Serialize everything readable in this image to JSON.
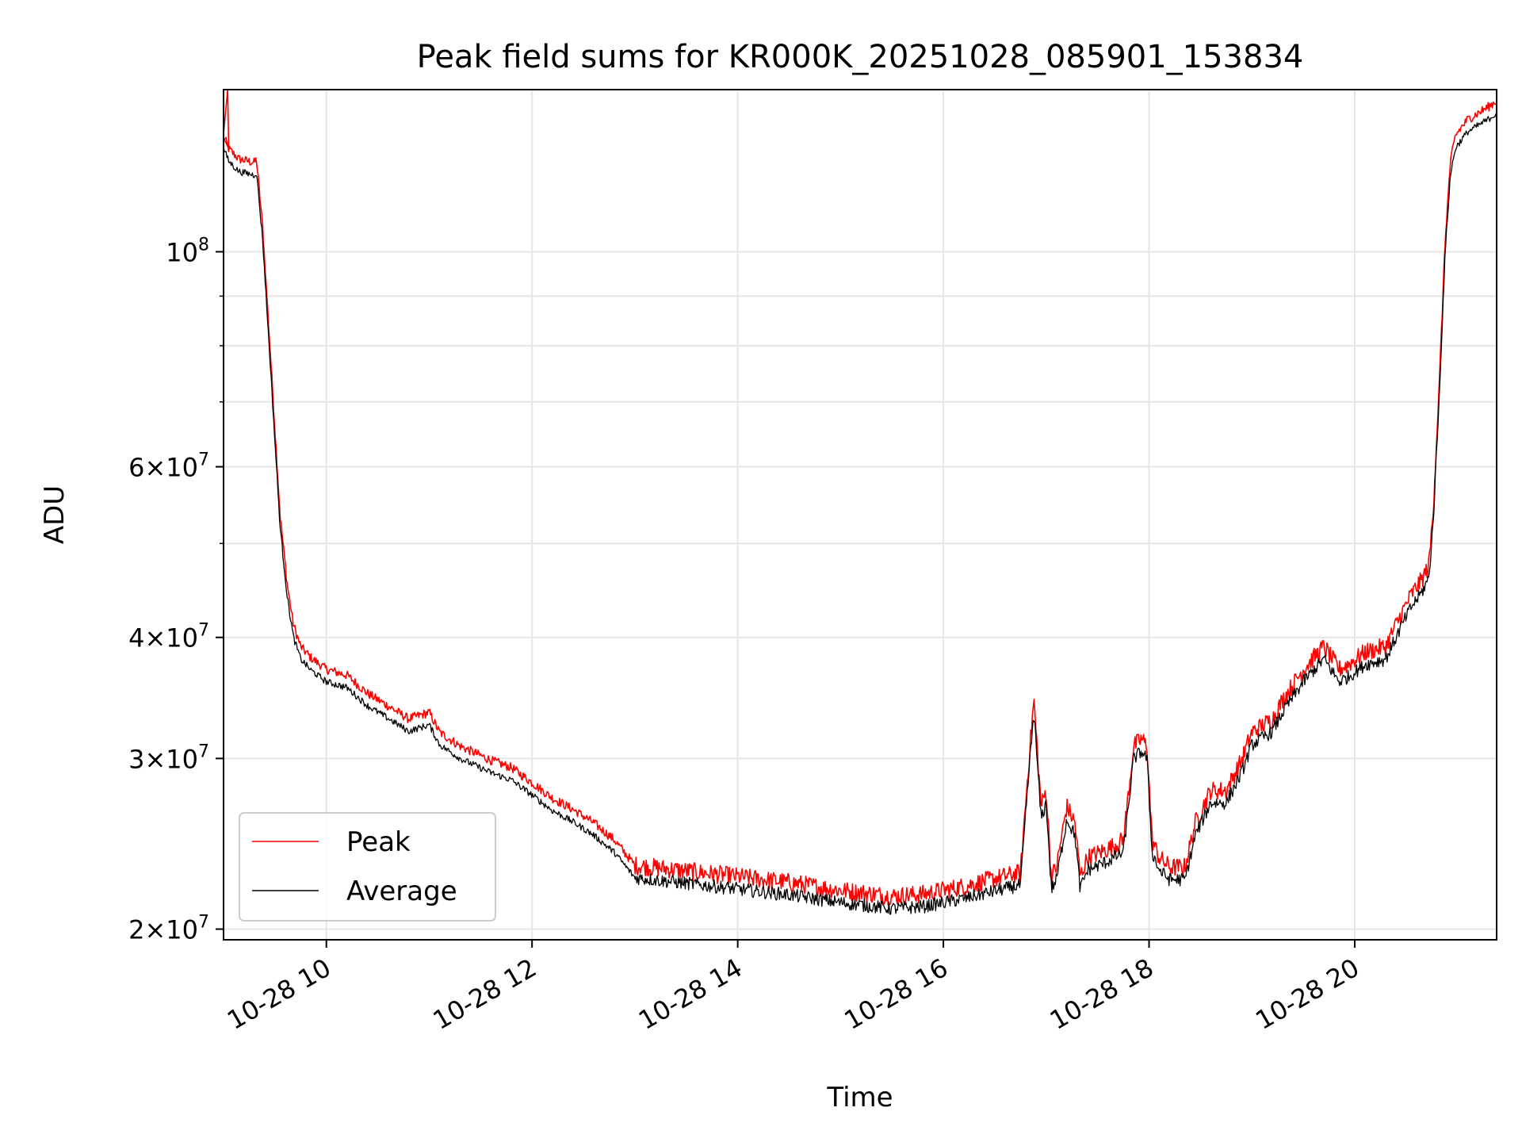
{
  "chart_data": {
    "type": "line",
    "title": "Peak field sums for KR000K_20251028_085901_153834",
    "xlabel": "Time",
    "ylabel": "ADU",
    "yscale": "log",
    "xlim": [
      9.0,
      21.38
    ],
    "ylim": [
      19500000,
      147000000
    ],
    "grid": true,
    "legend": "lower left",
    "xticks": [
      {
        "x": 10,
        "label": "10-28 10"
      },
      {
        "x": 12,
        "label": "10-28 12"
      },
      {
        "x": 14,
        "label": "10-28 14"
      },
      {
        "x": 16,
        "label": "10-28 16"
      },
      {
        "x": 18,
        "label": "10-28 18"
      },
      {
        "x": 20,
        "label": "10-28 20"
      }
    ],
    "yticks_major": [
      {
        "y": 20000000,
        "base": "2",
        "exp": "7"
      },
      {
        "y": 30000000,
        "base": "3",
        "exp": "7"
      },
      {
        "y": 40000000,
        "base": "4",
        "exp": "7"
      },
      {
        "y": 60000000,
        "base": "6",
        "exp": "7"
      },
      {
        "y": 100000000,
        "base": "",
        "exp": "8"
      }
    ],
    "y_minor_grid": [
      50000000,
      70000000,
      80000000,
      90000000
    ],
    "series": [
      {
        "name": "Peak",
        "color": "#ff0000",
        "noise": 0.022,
        "offset": 1.03,
        "spike": {
          "x": 9.04,
          "y": 147000000
        },
        "x": [
          9.0,
          9.05,
          9.15,
          9.3,
          9.32,
          9.38,
          9.45,
          9.55,
          9.62,
          9.68,
          9.75,
          9.85,
          10.0,
          10.2,
          10.4,
          10.6,
          10.8,
          11.0,
          11.1,
          11.3,
          11.6,
          11.8,
          12.0,
          12.2,
          12.4,
          12.6,
          12.8,
          13.0,
          13.5,
          14.0,
          14.5,
          15.0,
          15.5,
          15.8,
          16.2,
          16.5,
          16.75,
          16.82,
          16.88,
          16.95,
          17.0,
          17.05,
          17.1,
          17.2,
          17.28,
          17.33,
          17.4,
          17.6,
          17.75,
          17.85,
          17.93,
          17.98,
          18.03,
          18.1,
          18.2,
          18.35,
          18.45,
          18.6,
          18.75,
          18.9,
          19.0,
          19.2,
          19.3,
          19.5,
          19.6,
          19.7,
          19.85,
          19.95,
          20.1,
          20.3,
          20.45,
          20.55,
          20.65,
          20.72,
          20.76,
          20.82,
          20.88,
          20.93,
          20.98,
          21.05,
          21.1,
          21.2,
          21.3,
          21.38
        ],
        "y": [
          128000000,
          124000000,
          121000000,
          120000000,
          121000000,
          103000000,
          78000000,
          52000000,
          44000000,
          40000000,
          38000000,
          37000000,
          36000000,
          35500000,
          34000000,
          33000000,
          32000000,
          32500000,
          31000000,
          30000000,
          29000000,
          28500000,
          27500000,
          26500000,
          25800000,
          25000000,
          24000000,
          22600000,
          22300000,
          22000000,
          21700000,
          21300000,
          21000000,
          21100000,
          21500000,
          21900000,
          22200000,
          28000000,
          33500000,
          26000000,
          27000000,
          22000000,
          22500000,
          26000000,
          25000000,
          22000000,
          23000000,
          23500000,
          24000000,
          30000000,
          30500000,
          30000000,
          24000000,
          23000000,
          22500000,
          22500000,
          25000000,
          27000000,
          27000000,
          29000000,
          31000000,
          32000000,
          33500000,
          36000000,
          37000000,
          38000000,
          36000000,
          36500000,
          37500000,
          38000000,
          41000000,
          43000000,
          44500000,
          46000000,
          52000000,
          70000000,
          100000000,
          120000000,
          128000000,
          131000000,
          133000000,
          135000000,
          137000000,
          139000000
        ]
      },
      {
        "name": "Average",
        "color": "#000000",
        "noise": 0.016,
        "offset": 1.0,
        "x": [
          9.0,
          9.05,
          9.15,
          9.3,
          9.32,
          9.38,
          9.45,
          9.55,
          9.62,
          9.68,
          9.75,
          9.85,
          10.0,
          10.2,
          10.4,
          10.6,
          10.8,
          11.0,
          11.1,
          11.3,
          11.6,
          11.8,
          12.0,
          12.2,
          12.4,
          12.6,
          12.8,
          13.0,
          13.5,
          14.0,
          14.5,
          15.0,
          15.5,
          15.8,
          16.2,
          16.5,
          16.75,
          16.82,
          16.88,
          16.95,
          17.0,
          17.05,
          17.1,
          17.2,
          17.28,
          17.33,
          17.4,
          17.6,
          17.75,
          17.85,
          17.93,
          17.98,
          18.03,
          18.1,
          18.2,
          18.35,
          18.45,
          18.6,
          18.75,
          18.9,
          19.0,
          19.2,
          19.3,
          19.5,
          19.6,
          19.7,
          19.85,
          19.95,
          20.1,
          20.3,
          20.45,
          20.55,
          20.65,
          20.72,
          20.76,
          20.82,
          20.88,
          20.93,
          20.98,
          21.05,
          21.1,
          21.2,
          21.3,
          21.38
        ],
        "y": [
          128000000,
          124000000,
          121000000,
          120000000,
          121000000,
          103000000,
          78000000,
          52000000,
          44000000,
          40000000,
          38000000,
          37000000,
          36000000,
          35500000,
          34000000,
          33000000,
          32000000,
          32500000,
          31000000,
          30000000,
          29000000,
          28500000,
          27500000,
          26500000,
          25800000,
          25000000,
          24000000,
          22600000,
          22300000,
          22000000,
          21700000,
          21300000,
          21000000,
          21100000,
          21500000,
          21900000,
          22200000,
          28000000,
          33500000,
          26000000,
          27000000,
          22000000,
          22500000,
          26000000,
          25000000,
          22000000,
          23000000,
          23500000,
          24000000,
          30000000,
          30500000,
          30000000,
          24000000,
          23000000,
          22500000,
          22500000,
          25000000,
          27000000,
          27000000,
          29000000,
          31000000,
          32000000,
          33500000,
          36000000,
          37000000,
          38000000,
          36000000,
          36500000,
          37500000,
          38000000,
          41000000,
          43000000,
          44500000,
          46000000,
          52000000,
          70000000,
          100000000,
          120000000,
          128000000,
          131000000,
          133000000,
          135000000,
          137000000,
          139000000
        ]
      }
    ]
  }
}
